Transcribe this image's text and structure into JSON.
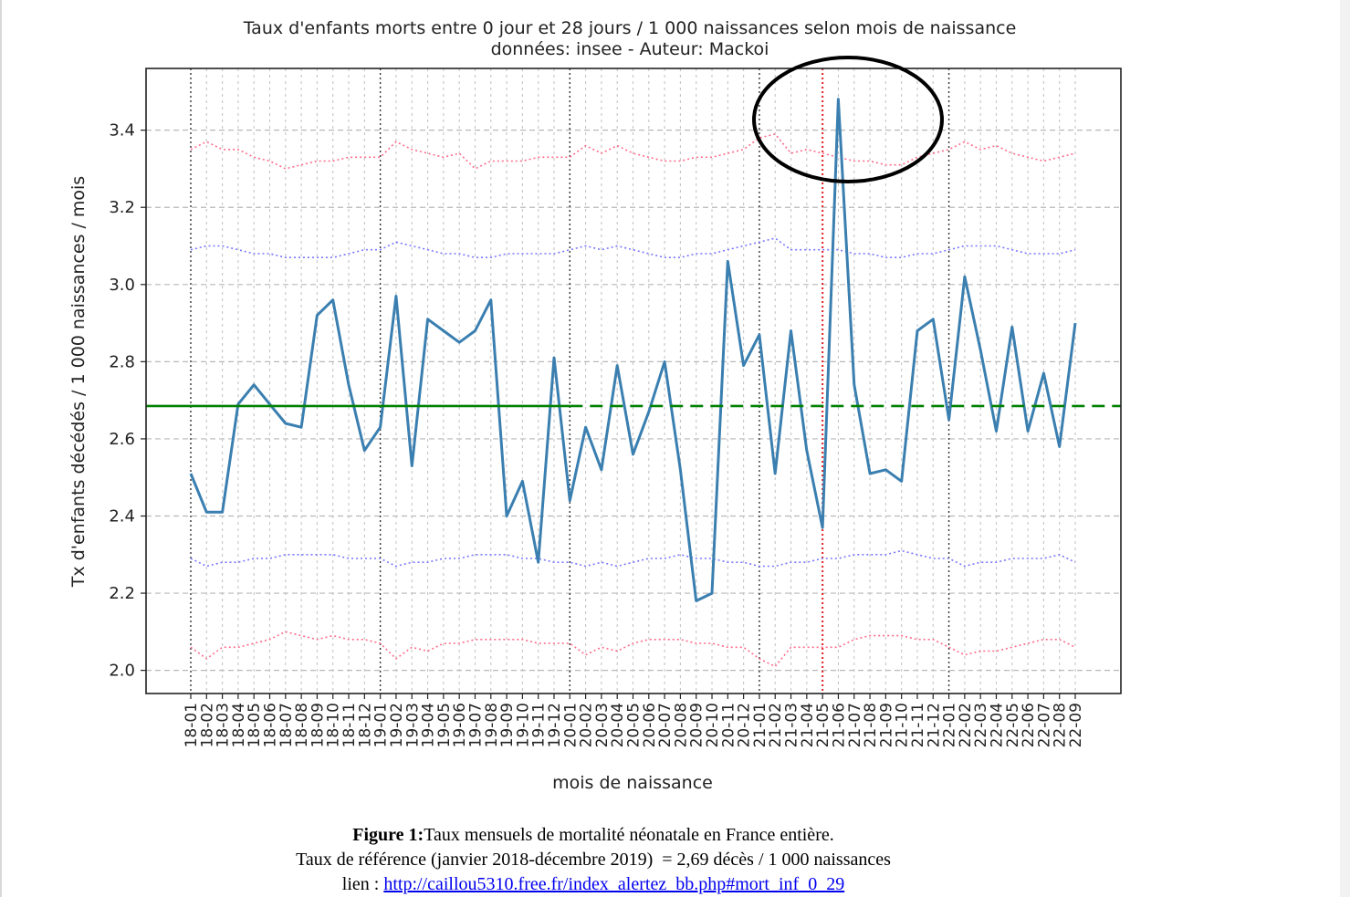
{
  "chart_data": {
    "type": "line",
    "title": "Taux d'enfants morts entre 0 jour et 28 jours / 1 000 naissances selon mois de naissance",
    "subtitle": "données: insee - Auteur: Mackoi",
    "xlabel": "mois de naissance",
    "ylabel": "Tx d'enfants décédés / 1 000 naissances / mois",
    "ylim": [
      1.94,
      3.56
    ],
    "yticks": [
      "2.0",
      "2.2",
      "2.4",
      "2.6",
      "2.8",
      "3.0",
      "3.2",
      "3.4"
    ],
    "grid": true,
    "categories": [
      "18-01",
      "18-02",
      "18-03",
      "18-04",
      "18-05",
      "18-06",
      "18-07",
      "18-08",
      "18-09",
      "18-10",
      "18-11",
      "18-12",
      "19-01",
      "19-02",
      "19-03",
      "19-04",
      "19-05",
      "19-06",
      "19-07",
      "19-08",
      "19-09",
      "19-10",
      "19-11",
      "19-12",
      "20-01",
      "20-02",
      "20-03",
      "20-04",
      "20-05",
      "20-06",
      "20-07",
      "20-08",
      "20-09",
      "20-10",
      "20-11",
      "20-12",
      "21-01",
      "21-02",
      "21-03",
      "21-04",
      "21-05",
      "21-06",
      "21-07",
      "21-08",
      "21-09",
      "21-10",
      "21-11",
      "21-12",
      "22-01",
      "22-02",
      "22-03",
      "22-04",
      "22-05",
      "22-06",
      "22-07",
      "22-08",
      "22-09"
    ],
    "series": [
      {
        "style": "solid",
        "color": "#3a7fb0",
        "values": [
          2.51,
          2.41,
          2.41,
          2.69,
          2.74,
          2.69,
          2.64,
          2.63,
          2.92,
          2.96,
          2.74,
          2.57,
          2.63,
          2.97,
          2.53,
          2.91,
          2.88,
          2.85,
          2.88,
          2.96,
          2.4,
          2.49,
          2.28,
          2.81,
          2.44,
          2.63,
          2.52,
          2.79,
          2.56,
          2.67,
          2.8,
          2.52,
          2.18,
          2.2,
          3.06,
          2.79,
          2.87,
          2.51,
          2.88,
          2.57,
          2.37,
          3.48,
          2.74,
          2.51,
          2.52,
          2.49,
          2.88,
          2.91,
          2.65,
          3.02,
          2.83,
          2.62,
          2.89,
          2.62,
          2.77,
          2.58,
          2.9
        ]
      },
      {
        "style": "dotted",
        "color": "#ff6b8a",
        "values": [
          3.35,
          3.37,
          3.35,
          3.35,
          3.33,
          3.32,
          3.3,
          3.31,
          3.32,
          3.32,
          3.33,
          3.33,
          3.33,
          3.37,
          3.35,
          3.34,
          3.33,
          3.34,
          3.3,
          3.32,
          3.32,
          3.32,
          3.33,
          3.33,
          3.33,
          3.36,
          3.34,
          3.36,
          3.34,
          3.33,
          3.32,
          3.32,
          3.33,
          3.33,
          3.34,
          3.35,
          3.38,
          3.39,
          3.34,
          3.35,
          3.34,
          3.33,
          3.32,
          3.32,
          3.31,
          3.31,
          3.33,
          3.34,
          3.35,
          3.37,
          3.35,
          3.36,
          3.34,
          3.33,
          3.32,
          3.33,
          3.34
        ]
      },
      {
        "style": "dotted",
        "color": "#7777ff",
        "values": [
          3.09,
          3.1,
          3.1,
          3.09,
          3.08,
          3.08,
          3.07,
          3.07,
          3.07,
          3.07,
          3.08,
          3.09,
          3.09,
          3.11,
          3.1,
          3.09,
          3.08,
          3.08,
          3.07,
          3.07,
          3.08,
          3.08,
          3.08,
          3.08,
          3.09,
          3.1,
          3.09,
          3.1,
          3.09,
          3.08,
          3.07,
          3.07,
          3.08,
          3.08,
          3.09,
          3.1,
          3.11,
          3.12,
          3.09,
          3.09,
          3.09,
          3.09,
          3.08,
          3.08,
          3.07,
          3.07,
          3.08,
          3.08,
          3.09,
          3.1,
          3.1,
          3.1,
          3.09,
          3.08,
          3.08,
          3.08,
          3.09
        ]
      },
      {
        "style": "dotted",
        "color": "#7777ff",
        "values": [
          2.29,
          2.27,
          2.28,
          2.28,
          2.29,
          2.29,
          2.3,
          2.3,
          2.3,
          2.3,
          2.29,
          2.29,
          2.29,
          2.27,
          2.28,
          2.28,
          2.29,
          2.29,
          2.3,
          2.3,
          2.3,
          2.29,
          2.29,
          2.28,
          2.28,
          2.27,
          2.28,
          2.27,
          2.28,
          2.29,
          2.29,
          2.3,
          2.29,
          2.29,
          2.28,
          2.28,
          2.27,
          2.27,
          2.28,
          2.28,
          2.29,
          2.29,
          2.3,
          2.3,
          2.3,
          2.31,
          2.3,
          2.29,
          2.29,
          2.27,
          2.28,
          2.28,
          2.29,
          2.29,
          2.29,
          2.3,
          2.28
        ]
      },
      {
        "style": "dotted",
        "color": "#ff6b8a",
        "values": [
          2.06,
          2.03,
          2.06,
          2.06,
          2.07,
          2.08,
          2.1,
          2.09,
          2.08,
          2.09,
          2.08,
          2.08,
          2.07,
          2.03,
          2.06,
          2.05,
          2.07,
          2.07,
          2.08,
          2.08,
          2.08,
          2.08,
          2.07,
          2.07,
          2.07,
          2.04,
          2.06,
          2.05,
          2.07,
          2.08,
          2.08,
          2.08,
          2.07,
          2.07,
          2.06,
          2.06,
          2.03,
          2.01,
          2.06,
          2.06,
          2.06,
          2.06,
          2.08,
          2.09,
          2.09,
          2.09,
          2.08,
          2.08,
          2.06,
          2.04,
          2.05,
          2.05,
          2.06,
          2.07,
          2.08,
          2.08,
          2.06
        ]
      }
    ],
    "reference_line": {
      "value": 2.685,
      "color": "#008000",
      "solid_until": "20-01"
    },
    "year_lines": [
      "18-01",
      "19-01",
      "20-01",
      "21-01",
      "22-01"
    ],
    "event_line": {
      "at": "21-05",
      "color": "#e02020"
    },
    "annotation": "ellipse around 21-06 peak"
  },
  "caption": {
    "figure_label": "Figure 1:",
    "figure_text": "Taux mensuels de mortalité néonatale en France entière.",
    "reference_text": "Taux de référence (janvier 2018-décembre 2019)  = 2,69 décès / 1 000 naissances",
    "link_prefix": "lien : ",
    "link_text": "http://caillou5310.free.fr/index_alertez_bb.php#mort_inf_0_29"
  }
}
